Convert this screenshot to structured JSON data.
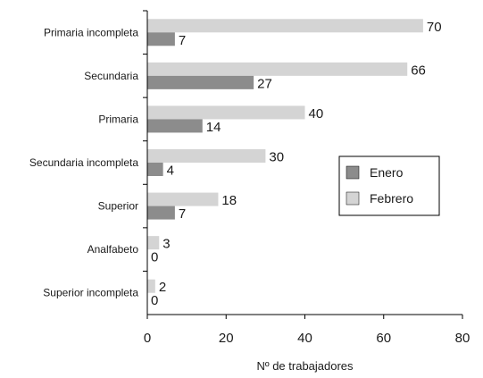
{
  "chart_data": {
    "type": "bar",
    "orientation": "horizontal",
    "categories": [
      "Primaria incompleta",
      "Secundaria",
      "Primaria",
      "Secundaria incompleta",
      "Superior",
      "Analfabeto",
      "Superior incompleta"
    ],
    "series": [
      {
        "name": "Enero",
        "color": "#8c8c8c",
        "values": [
          7,
          27,
          14,
          4,
          7,
          0,
          0
        ]
      },
      {
        "name": "Febrero",
        "color": "#d4d4d4",
        "values": [
          70,
          66,
          40,
          30,
          18,
          3,
          2
        ]
      }
    ],
    "xlabel": "Nº de trabajadores",
    "xlim": [
      0,
      80
    ],
    "xticks": [
      0,
      20,
      40,
      60,
      80
    ],
    "grid": false,
    "legend_position": "right"
  }
}
